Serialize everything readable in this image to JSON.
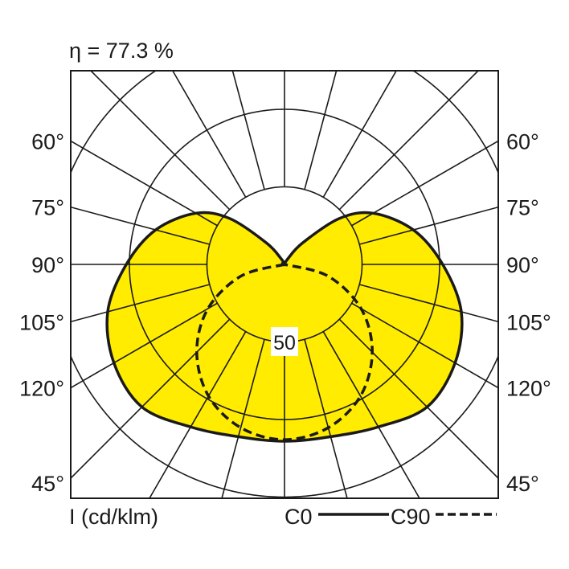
{
  "chart_data": {
    "type": "polar",
    "title": "η = 77.3 %",
    "unit_label": "I (cd/klm)",
    "radial_ticks": [
      50,
      100,
      150
    ],
    "radial_tick_labels": [
      "50"
    ],
    "angle_labels": [
      "120°",
      "105°",
      "90°",
      "75°",
      "60°",
      "45°"
    ],
    "angle_label_values": [
      120,
      105,
      90,
      75,
      60,
      45
    ],
    "spoke_step_deg": 15,
    "grid": true,
    "legend": {
      "position": "bottom-right",
      "entries": [
        "C0",
        "C90"
      ]
    },
    "colors": {
      "fill": "#FFEC00",
      "line": "#1a1a1a"
    },
    "series": [
      {
        "name": "C0",
        "style": "solid",
        "filled": true,
        "gamma": [
          0,
          15,
          30,
          45,
          60,
          75,
          90,
          105,
          120,
          130,
          140,
          150,
          165,
          180
        ],
        "values": [
          114,
          115,
          121,
          130,
          127,
          118,
          102,
          86,
          66,
          46,
          18,
          4,
          0,
          0
        ]
      },
      {
        "name": "C90",
        "style": "dashed",
        "filled": false,
        "gamma": [
          0,
          15,
          30,
          45,
          60,
          75,
          90
        ],
        "values": [
          113,
          109,
          98,
          80,
          57,
          29,
          0
        ]
      }
    ]
  }
}
